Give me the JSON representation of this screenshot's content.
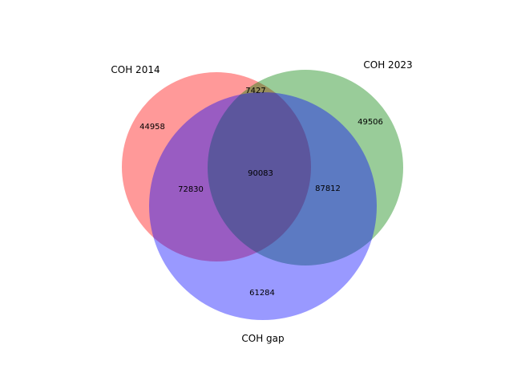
{
  "chart_data": {
    "type": "venn",
    "sets": [
      {
        "key": "A",
        "name": "COH 2014",
        "color": "#ff0000"
      },
      {
        "key": "B",
        "name": "COH 2023",
        "color": "#008000"
      },
      {
        "key": "C",
        "name": "COH gap",
        "color": "#0000ff"
      }
    ],
    "fill_alpha": 0.4,
    "regions": {
      "A_only": 44958,
      "B_only": 49506,
      "C_only": 61284,
      "A_and_B_only": 7427,
      "A_and_C_only": 72830,
      "B_and_C_only": 87812,
      "A_and_B_and_C": 90083
    }
  }
}
